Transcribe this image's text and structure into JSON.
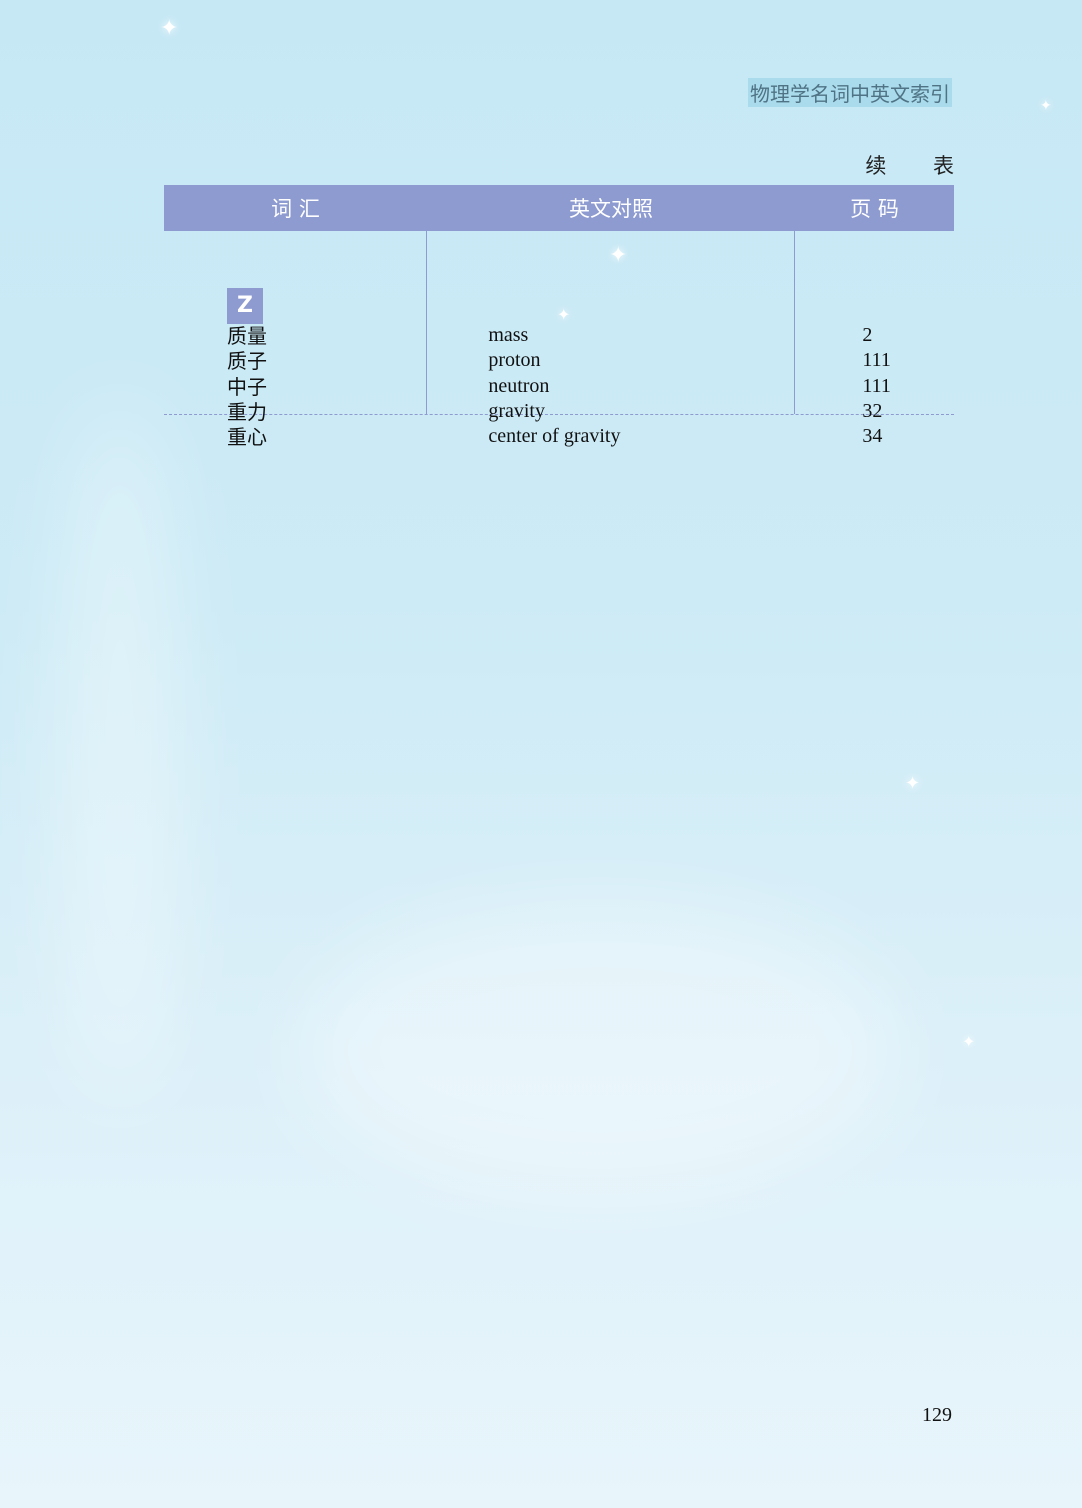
{
  "running_header": "物理学名词中英文索引",
  "continued_label": "续 表",
  "table": {
    "headers": [
      "词 汇",
      "英文对照",
      "页 码"
    ],
    "section_letter": "Z",
    "rows": [
      {
        "term": "质量",
        "english": "mass",
        "page": "2"
      },
      {
        "term": "质子",
        "english": "proton",
        "page": "111"
      },
      {
        "term": "中子",
        "english": "neutron",
        "page": "111"
      },
      {
        "term": "重力",
        "english": "gravity",
        "page": "32"
      },
      {
        "term": "重心",
        "english": "center of gravity",
        "page": "34"
      }
    ]
  },
  "page_number": "129",
  "colors": {
    "header_bar": "#8e9bd0",
    "background": "#c6e8f5"
  }
}
